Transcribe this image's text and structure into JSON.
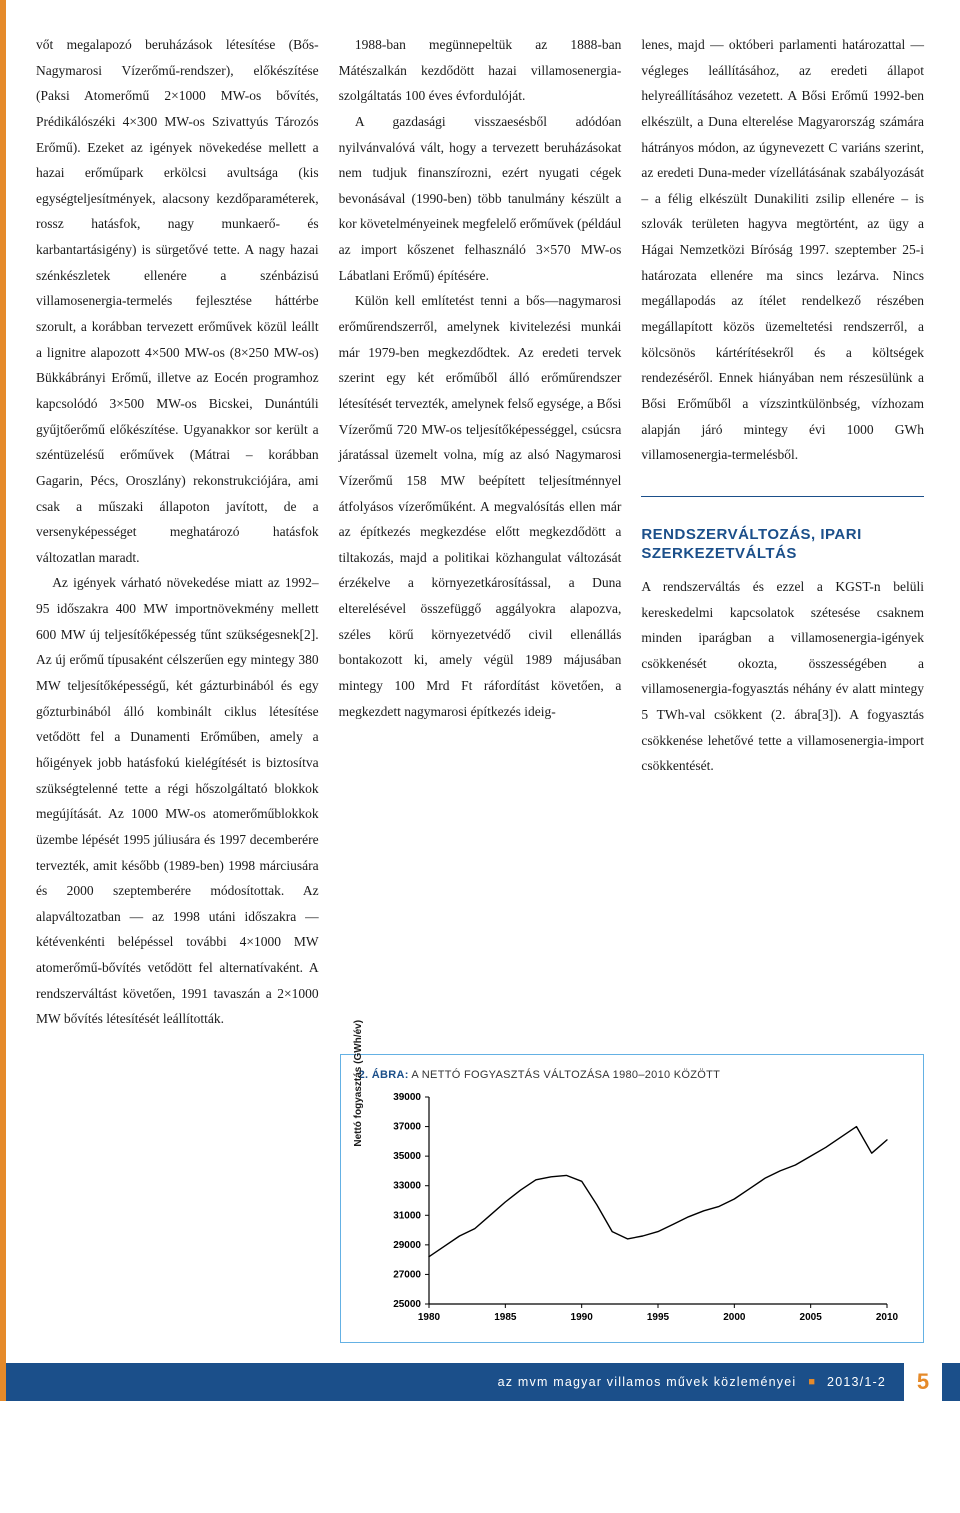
{
  "columns": {
    "c1": {
      "p1": "vőt megalapozó beruházások létesítése (Bős-Nagymarosi Vízerőmű-rendszer), előkészítése (Paksi Atomerőmű 2×1000 MW-os bővítés, Prédikálószéki 4×300 MW-os Szivattyús Tározós Erőmű). Ezeket az igények növekedése mellett a hazai erőműpark erkölcsi avultsága (kis egységteljesítmények, alacsony kezdőparaméterek, rossz hatásfok, nagy munkaerő- és karbantartásigény) is sürgetővé tette. A nagy hazai szénkészletek ellenére a szénbázisú villamosenergia-termelés fejlesztése háttérbe szorult, a korábban tervezett erőművek közül leállt a lignitre alapozott 4×500 MW-os (8×250 MW-os) Bükkábrányi Erőmű, illetve az Eocén programhoz kapcsolódó 3×500 MW-os Bicskei, Dunántúli gyűjtőerőmű előkészítése. Ugyanakkor sor került a széntüzelésű erőművek (Mátrai – korábban Gagarin, Pécs, Oroszlány) rekonstrukciójára, ami csak a műszaki állapoton javított, de a versenyképességet meghatározó hatásfok változatlan maradt.",
      "p2": "Az igények várható növekedése miatt az 1992–95 időszakra 400 MW importnövekmény mellett 600 MW új teljesítőképesség tűnt szükségesnek[2]. Az új erőmű típusaként célszerűen egy mintegy 380 MW teljesítőképességű, két gázturbinából és egy gőzturbinából álló kombinált ciklus létesítése vetődött fel a Dunamenti Erőműben, amely a hőigények jobb hatásfokú kielégítését is biztosítva szükségtelenné tette a régi hőszolgáltató blokkok megújítását. Az 1000 MW-os atomerőműblokkok üzembe lépését 1995 júliusára és 1997 decemberére tervezték, amit később (1989-ben) 1998 márciusára és 2000 szeptemberére módosítottak. Az alapváltozatban — az 1998 utáni időszakra — kétévenkénti belépéssel további 4×1000 MW atomerőmű-bővítés vetődött fel alternatívaként. A rendszerváltást követően, 1991 tavaszán a 2×1000 MW bővítés létesítését leállították."
    },
    "c2": {
      "p1": "1988-ban megünnepeltük az 1888-ban Mátészalkán kezdődött hazai villamosenergia-szolgáltatás 100 éves évfordulóját.",
      "p2": "A gazdasági visszaesésből adódóan nyilvánvalóvá vált, hogy a tervezett beruházásokat nem tudjuk finanszírozni, ezért nyugati cégek bevonásával (1990-ben) több tanulmány készült a kor követelményeinek megfelelő erőművek (például az import kőszenet felhasználó 3×570 MW-os Lábatlani Erőmű) építésére.",
      "p3": "Külön kell említetést tenni a bős—nagymarosi erőműrendszerről, amelynek kivitelezési munkái már 1979-ben megkezdődtek. Az eredeti tervek szerint egy két erőműből álló erőműrendszer létesítését tervezték, amelynek felső egysége, a Bősi Vízerőmű 720 MW-os teljesítőképességgel, csúcsra járatással üzemelt volna, míg az alsó Nagymarosi Vízerőmű 158 MW beépített teljesítménnyel átfolyásos vízerőműként. A megvalósítás ellen már az építkezés megkezdése előtt megkezdődött a tiltakozás, majd a politikai közhangulat változását érzékelve a környezetkárosítással, a Duna elterelésével összefüggő aggályokra alapozva, széles körű környezetvédő civil ellenállás bontakozott ki, amely végül 1989 májusában mintegy 100 Mrd Ft ráfordítást követően, a megkezdett nagymarosi építkezés ideig-"
    },
    "c3": {
      "p1": "lenes, majd — októberi parlamenti határozattal — végleges leállításához, az eredeti állapot helyreállításához vezetett. A Bősi Erőmű 1992-ben elkészült, a Duna elterelése Magyarország számára hátrányos módon, az úgynevezett C variáns szerint, az eredeti Duna-meder vízellátásának szabályozását – a félig elkészült Dunakiliti zsilip ellenére – is szlovák területen hagyva megtörtént, az ügy a Hágai Nemzetközi Bíróság 1997. szeptember 25-i határozata ellenére ma sincs lezárva. Nincs megállapodás az ítélet rendelkező részében megállapított közös üzemeltetési rendszerről, a kölcsönös kártérítésekről és a költségek rendezéséről. Ennek hiányában nem részesülünk a Bősi Erőműből a vízszintkülönbség, vízhozam alapján járó mintegy évi 1000 GWh villamosenergia-termelésből.",
      "heading": "RENDSZERVÁLTOZÁS,\nIPARI SZERKEZETVÁLTÁS",
      "p2": "A rendszerváltás és ezzel a KGST-n belüli kereskedelmi kapcsolatok szétesése csaknem minden iparágban a villamosenergia-igények csökkenését okozta, összességében a villamosenergia-fogyasztás néhány év alatt mintegy 5 TWh-val csökkent (2. ábra[3]). A fogyasztás csökkenése lehetővé tette a villamosenergia-import csökkentését."
    }
  },
  "figure": {
    "captionNum": "2. ÁBRA:",
    "captionText": " A NETTÓ FOGYASZTÁS VÁLTOZÁSA 1980–2010 KÖZÖTT",
    "ylabel": "Nettó fogyasztás  (GWh/év)",
    "type": "line",
    "xlim": [
      1980,
      2010
    ],
    "ylim": [
      25000,
      39000
    ],
    "ytick_step": 2000,
    "xtick_step": 5,
    "xticks": [
      "1980",
      "1985",
      "1990",
      "1995",
      "2000",
      "2005",
      "2010"
    ],
    "yticks": [
      "25000",
      "27000",
      "29000",
      "31000",
      "33000",
      "35000",
      "37000",
      "39000"
    ],
    "line_color": "#000000",
    "line_width": 1.4,
    "background_color": "#ffffff",
    "axis_color": "#000000",
    "tick_font_size": 10,
    "data": [
      [
        1980,
        28200
      ],
      [
        1981,
        28900
      ],
      [
        1982,
        29600
      ],
      [
        1983,
        30100
      ],
      [
        1984,
        31000
      ],
      [
        1985,
        31900
      ],
      [
        1986,
        32700
      ],
      [
        1987,
        33400
      ],
      [
        1988,
        33600
      ],
      [
        1989,
        33700
      ],
      [
        1990,
        33300
      ],
      [
        1991,
        31700
      ],
      [
        1992,
        29900
      ],
      [
        1993,
        29400
      ],
      [
        1994,
        29600
      ],
      [
        1995,
        29900
      ],
      [
        1996,
        30400
      ],
      [
        1997,
        30900
      ],
      [
        1998,
        31300
      ],
      [
        1999,
        31600
      ],
      [
        2000,
        32100
      ],
      [
        2001,
        32800
      ],
      [
        2002,
        33500
      ],
      [
        2003,
        34000
      ],
      [
        2004,
        34400
      ],
      [
        2005,
        35000
      ],
      [
        2006,
        35600
      ],
      [
        2007,
        36300
      ],
      [
        2008,
        37000
      ],
      [
        2009,
        35200
      ],
      [
        2010,
        36100
      ]
    ]
  },
  "footer": {
    "text": "az mvm magyar villamos művek közleményei",
    "issue": "2013/1-2",
    "page": "5"
  },
  "colors": {
    "accent_blue": "#1b4f8a",
    "accent_orange": "#e58a2a",
    "border_blue": "#64b1e4"
  }
}
